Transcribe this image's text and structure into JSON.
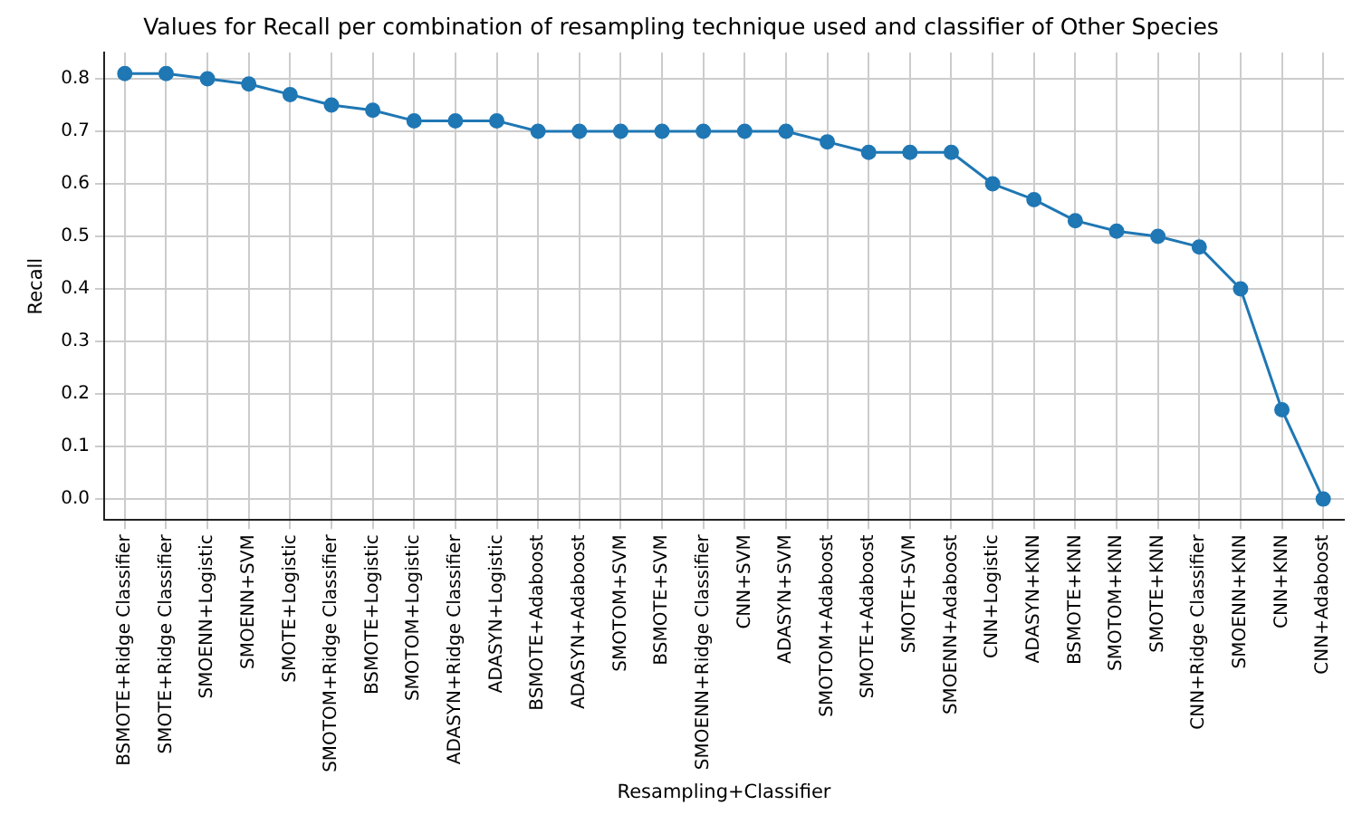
{
  "chart_data": {
    "type": "line",
    "title": "Values for Recall per combination of resampling technique used and classifier of Other Species",
    "xlabel": "Resampling+Classifier",
    "ylabel": "Recall",
    "categories": [
      "BSMOTE+Ridge Classifier",
      "SMOTE+Ridge Classifier",
      "SMOENN+Logistic",
      "SMOENN+SVM",
      "SMOTE+Logistic",
      "SMOTOM+Ridge Classifier",
      "BSMOTE+Logistic",
      "SMOTOM+Logistic",
      "ADASYN+Ridge Classifier",
      "ADASYN+Logistic",
      "BSMOTE+Adaboost",
      "ADASYN+Adaboost",
      "SMOTOM+SVM",
      "BSMOTE+SVM",
      "SMOENN+Ridge Classifier",
      "CNN+SVM",
      "ADASYN+SVM",
      "SMOTOM+Adaboost",
      "SMOTE+Adaboost",
      "SMOTE+SVM",
      "SMOENN+Adaboost",
      "CNN+Logistic",
      "ADASYN+KNN",
      "BSMOTE+KNN",
      "SMOTOM+KNN",
      "SMOTE+KNN",
      "CNN+Ridge Classifier",
      "SMOENN+KNN",
      "CNN+KNN",
      "CNN+Adaboost"
    ],
    "series": [
      {
        "color": "#1f77b4",
        "values": [
          0.81,
          0.81,
          0.8,
          0.79,
          0.77,
          0.75,
          0.74,
          0.72,
          0.72,
          0.72,
          0.7,
          0.7,
          0.7,
          0.7,
          0.7,
          0.7,
          0.7,
          0.68,
          0.66,
          0.66,
          0.66,
          0.6,
          0.57,
          0.53,
          0.51,
          0.5,
          0.48,
          0.4,
          0.17,
          0.0
        ]
      }
    ],
    "ylim": [
      -0.04,
      0.85
    ],
    "yticks": [
      {
        "value": 0,
        "label": "0.0"
      },
      {
        "value": 0.1,
        "label": "0.1"
      },
      {
        "value": 0.2,
        "label": "0.2"
      },
      {
        "value": 0.3,
        "label": "0.3"
      },
      {
        "value": 0.4,
        "label": "0.4"
      },
      {
        "value": 0.5,
        "label": "0.5"
      },
      {
        "value": 0.6,
        "label": "0.6"
      },
      {
        "value": 0.7,
        "label": "0.7"
      },
      {
        "value": 0.8,
        "label": "0.8"
      }
    ],
    "grid": true,
    "legend": false,
    "marker": "circle",
    "line_style": "solid"
  }
}
